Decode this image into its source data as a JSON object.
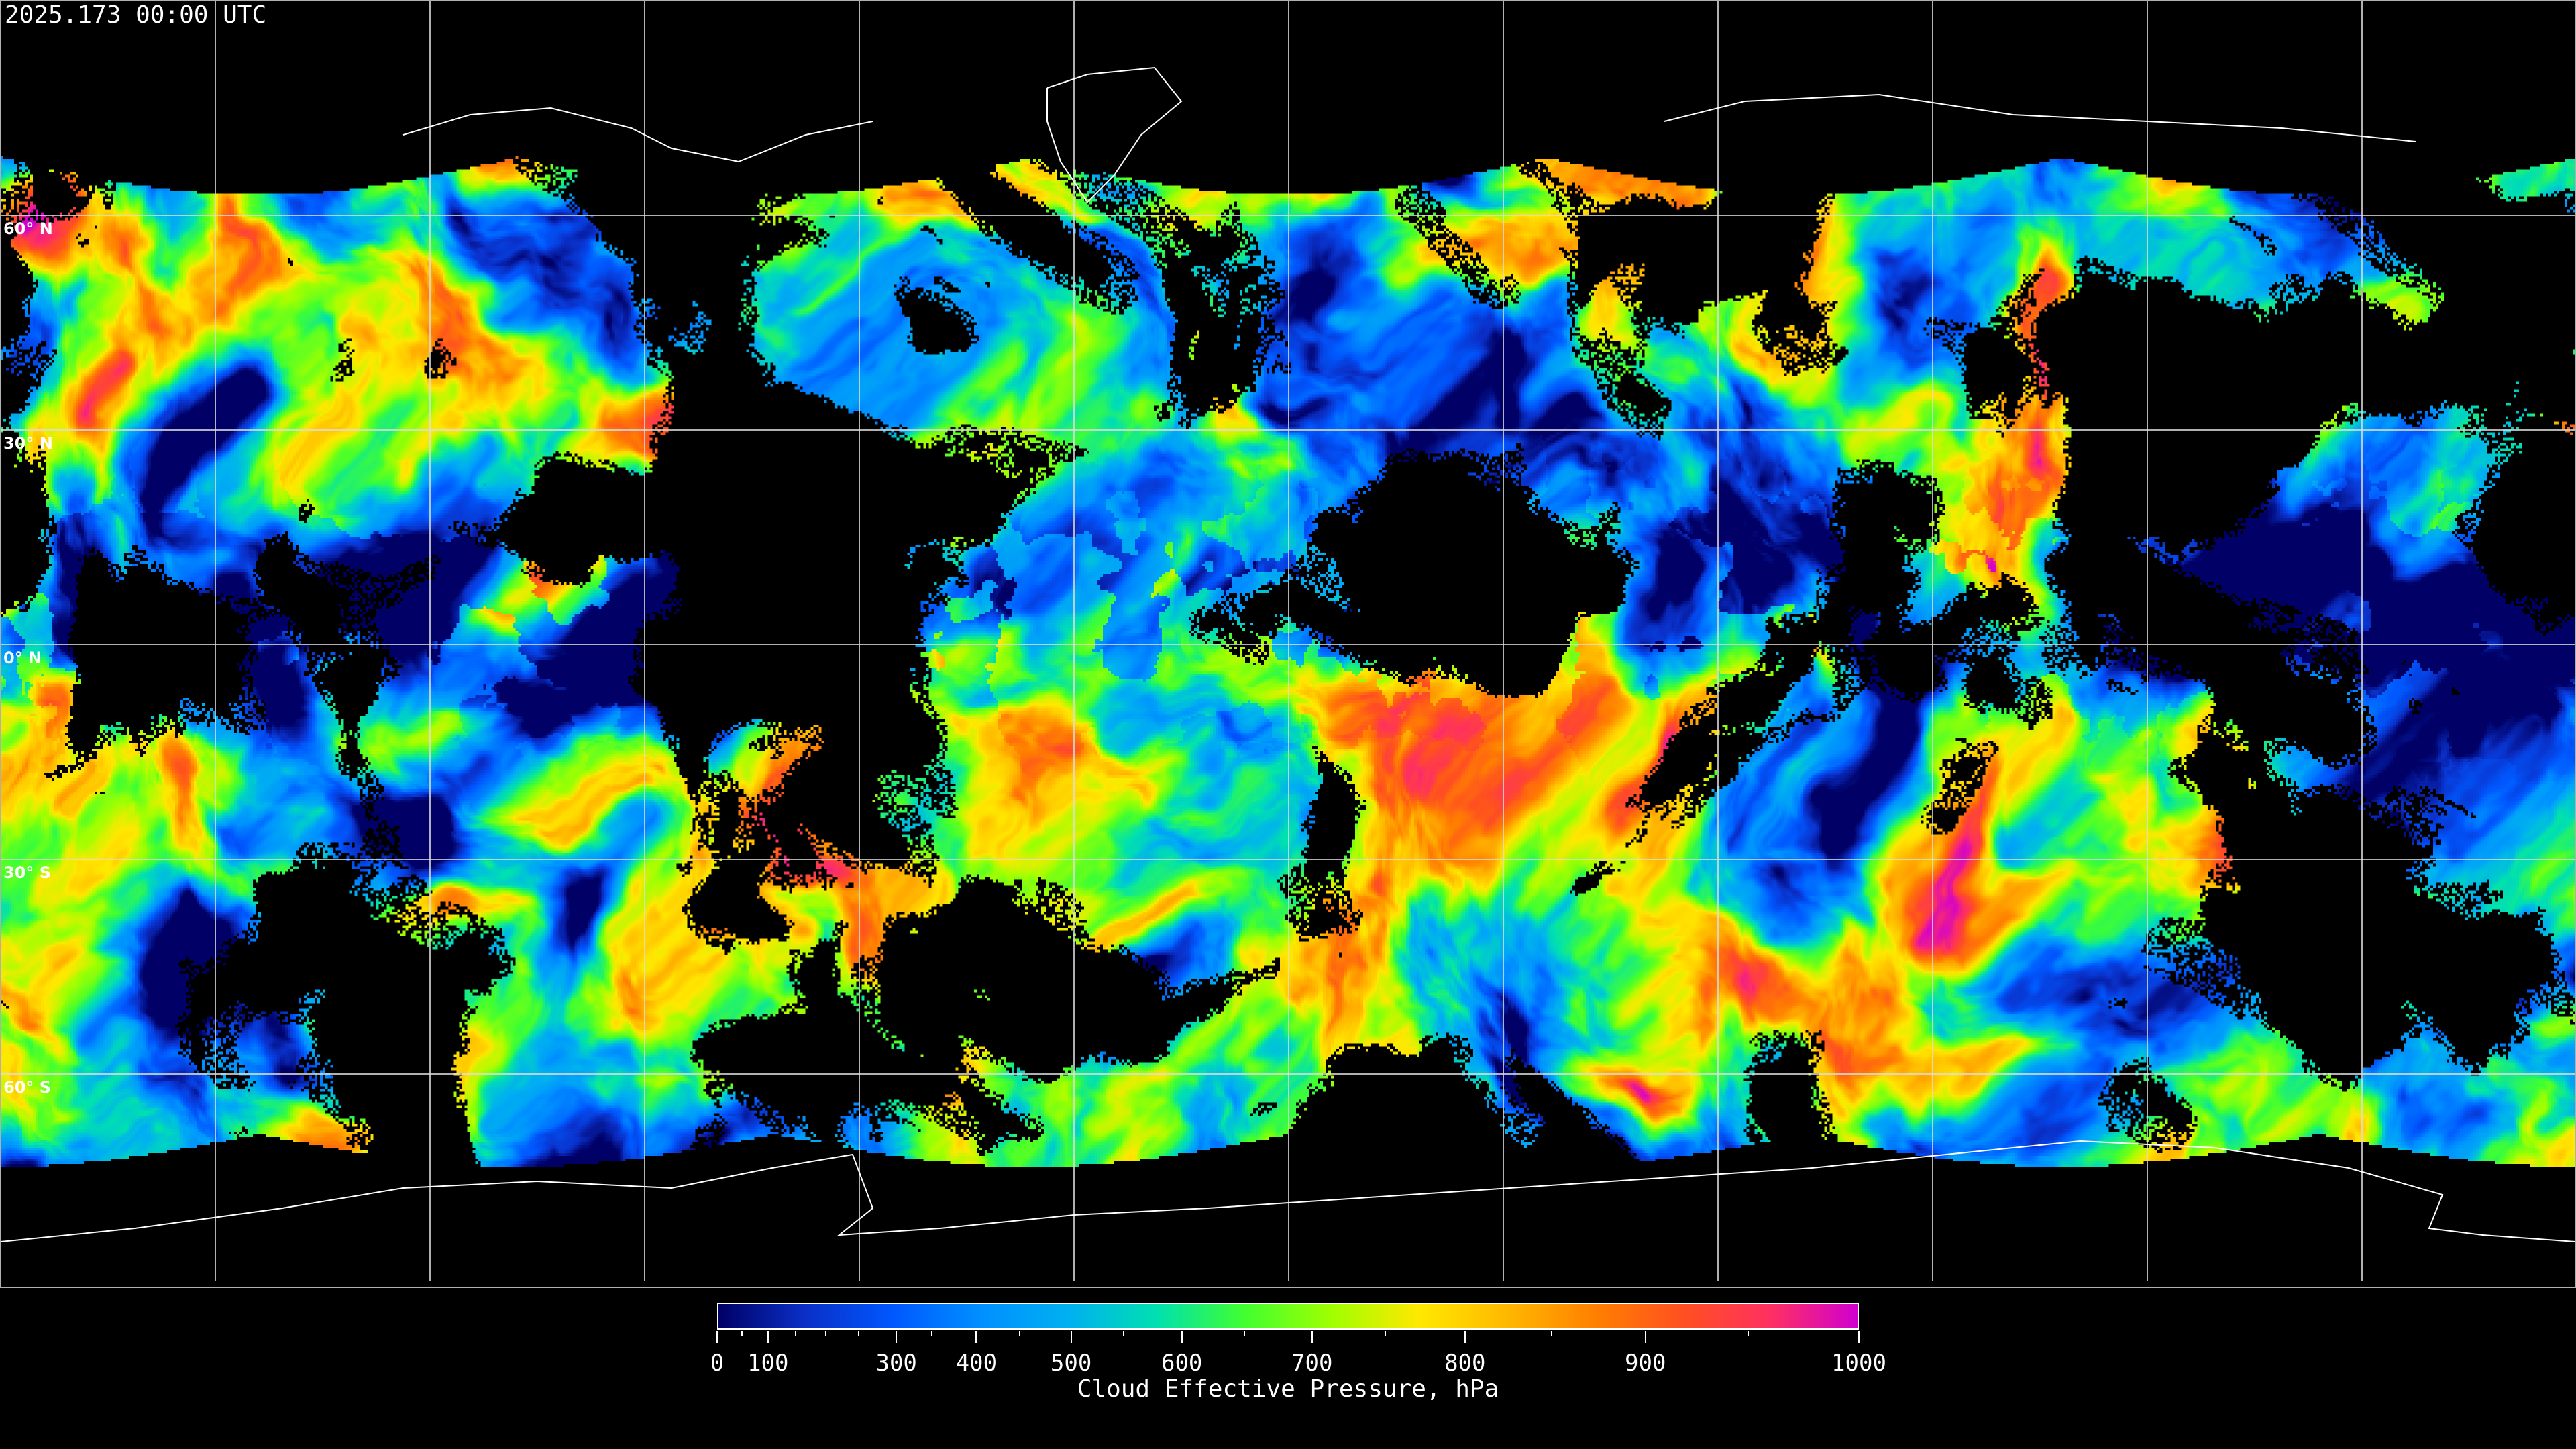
{
  "header": {
    "timestamp": "2025.173 00:00 UTC"
  },
  "map": {
    "projection": "equirectangular",
    "gridlines": true,
    "gridline_color": "#ffffff",
    "coastline_color": "#ffffff",
    "lat_labels": [
      "60° N",
      "30° N",
      "0° N",
      "30° S",
      "60° S"
    ]
  },
  "colorbar": {
    "title": "Cloud Effective Pressure, hPa",
    "range": [
      0,
      1000
    ],
    "tick_labels": [
      "0",
      "100",
      "300",
      "400",
      "500",
      "600",
      "700",
      "800",
      "900",
      "1000"
    ],
    "colors": [
      "#000066",
      "#0a30c8",
      "#0058ff",
      "#0090ff",
      "#00b0f0",
      "#00e0b0",
      "#40ff30",
      "#a0ff00",
      "#ffe800",
      "#ffb800",
      "#ff8000",
      "#ff5020",
      "#ff3060",
      "#d000d0"
    ]
  }
}
